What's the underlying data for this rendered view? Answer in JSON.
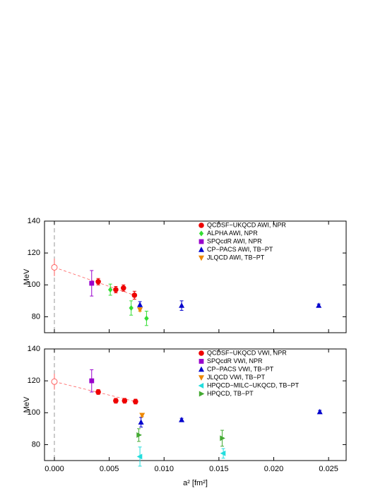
{
  "chart_data": [
    {
      "type": "scatter",
      "ylabel": "MeV",
      "xlim": [
        -0.0009,
        0.0266
      ],
      "ylim": [
        70,
        140
      ],
      "xticks": [
        {
          "value": 0,
          "label": "0.000"
        },
        {
          "value": 0.005,
          "label": "0.005"
        },
        {
          "value": 0.01,
          "label": "0.010"
        },
        {
          "value": 0.015,
          "label": "0.015"
        },
        {
          "value": 0.02,
          "label": "0.020"
        },
        {
          "value": 0.025,
          "label": "0.025"
        }
      ],
      "yticks": [
        80,
        100,
        120,
        140
      ],
      "legend": "top-right",
      "extrapolation": {
        "x": 0,
        "value": 111,
        "error": 5.5,
        "color": "#ff6060"
      },
      "series": [
        {
          "name": "QCDSF−UKQCD AWI, NPR",
          "color": "#ee0000",
          "marker": "circle",
          "x": [
            0.004,
            0.0056,
            0.0063,
            0.0073
          ],
          "values": [
            102,
            97,
            98,
            93.5
          ],
          "errors": [
            2,
            2,
            2,
            2.5
          ]
        },
        {
          "name": "ALPHA AWI, NPR",
          "color": "#33dd33",
          "marker": "diamond",
          "x": [
            0.0051,
            0.007,
            0.0084
          ],
          "values": [
            97,
            85.5,
            79
          ],
          "errors": [
            3.5,
            4.5,
            4.5
          ]
        },
        {
          "name": "SPQcdR AWI, NPR",
          "color": "#9900cc",
          "marker": "square",
          "x": [
            0.0034
          ],
          "values": [
            101
          ],
          "errors": [
            8
          ]
        },
        {
          "name": "CP−PACS AWI, TB−PT",
          "color": "#0000cc",
          "marker": "triangle-up",
          "x": [
            0.0078,
            0.0116,
            0.0241
          ],
          "values": [
            87.5,
            87,
            87
          ],
          "errors": [
            2,
            3,
            1
          ]
        },
        {
          "name": "JLQCD AWI, TB−PT",
          "color": "#ee8800",
          "marker": "triangle-down",
          "x": [
            0.0078
          ],
          "values": [
            84.5
          ],
          "errors": [
            1
          ]
        }
      ]
    },
    {
      "type": "scatter",
      "ylabel": "MeV",
      "xlabel": "a² [fm²]",
      "xlim": [
        -0.0009,
        0.0266
      ],
      "ylim": [
        70,
        140
      ],
      "xticks": [
        {
          "value": 0,
          "label": "0.000"
        },
        {
          "value": 0.005,
          "label": "0.005"
        },
        {
          "value": 0.01,
          "label": "0.010"
        },
        {
          "value": 0.015,
          "label": "0.015"
        },
        {
          "value": 0.02,
          "label": "0.020"
        },
        {
          "value": 0.025,
          "label": "0.025"
        }
      ],
      "yticks": [
        80,
        100,
        120,
        140
      ],
      "legend": "top-right",
      "extrapolation": {
        "x": 0,
        "value": 119.5,
        "error": 5,
        "color": "#ff6060"
      },
      "series": [
        {
          "name": "QCDSF−UKQCD VWI, NPR",
          "color": "#ee0000",
          "marker": "circle",
          "x": [
            0.004,
            0.0056,
            0.0064,
            0.0074
          ],
          "values": [
            113,
            107.5,
            107.5,
            107
          ],
          "errors": [
            1.5,
            1.5,
            1.5,
            1.5
          ]
        },
        {
          "name": "SPQcdR VWI, NPR",
          "color": "#9900cc",
          "marker": "square",
          "x": [
            0.0034
          ],
          "values": [
            120
          ],
          "errors": [
            7
          ]
        },
        {
          "name": "CP−PACS VWI, TB−PT",
          "color": "#0000cc",
          "marker": "triangle-up",
          "x": [
            0.0079,
            0.0116,
            0.0242
          ],
          "values": [
            94,
            95.5,
            100.5
          ],
          "errors": [
            3,
            1,
            1
          ]
        },
        {
          "name": "JLQCD VWI, TB−PT",
          "color": "#ee8800",
          "marker": "triangle-down",
          "x": [
            0.008
          ],
          "values": [
            98.5
          ],
          "errors": [
            1
          ]
        },
        {
          "name": "HPQCD−MILC−UKQCD, TB−PT",
          "color": "#22dddd",
          "marker": "triangle-left",
          "x": [
            0.0078,
            0.0154
          ],
          "values": [
            72.5,
            74.5
          ],
          "errors": [
            6,
            3
          ]
        },
        {
          "name": "HPQCD, TB−PT",
          "color": "#44aa33",
          "marker": "triangle-right",
          "x": [
            0.0077,
            0.0153
          ],
          "values": [
            86,
            84
          ],
          "errors": [
            4,
            5
          ]
        }
      ]
    }
  ]
}
